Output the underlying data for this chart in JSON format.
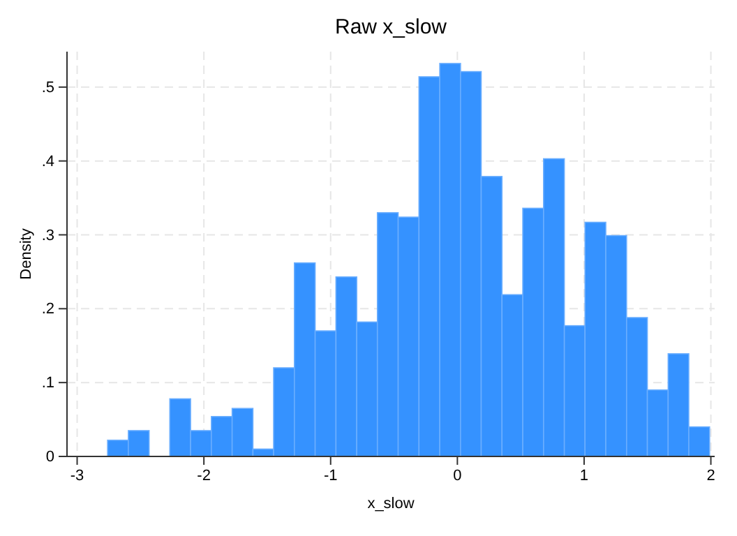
{
  "chart_data": {
    "type": "histogram",
    "title": "Raw x_slow",
    "xlabel": "x_slow",
    "ylabel": "Density",
    "color": "#3592ff",
    "bins": [
      -2.76,
      -2.596,
      -2.432,
      -2.269,
      -2.105,
      -1.941,
      -1.777,
      -1.613,
      -1.45,
      -1.286,
      -1.122,
      -0.958,
      -0.794,
      -0.631,
      -0.467,
      -0.303,
      -0.139,
      0.025,
      0.188,
      0.352,
      0.516,
      0.68,
      0.844,
      1.007,
      1.171,
      1.335,
      1.499,
      1.663,
      1.826,
      1.99
    ],
    "values": [
      0.022,
      0.035,
      0,
      0.078,
      0.035,
      0.054,
      0.065,
      0.01,
      0.12,
      0.262,
      0.17,
      0.243,
      0.182,
      0.33,
      0.324,
      0.514,
      0.532,
      0.521,
      0.379,
      0.219,
      0.336,
      0.403,
      0.177,
      0.317,
      0.299,
      0.188,
      0.09,
      0.139,
      0.04
    ],
    "xlim": [
      -3.08,
      2.03
    ],
    "ylim": [
      0,
      0.548
    ],
    "xticks": [
      -3,
      -2,
      -1,
      0,
      1,
      2
    ],
    "yticks": [
      0,
      {
        "value": 0.1,
        "label": ".1"
      },
      {
        "value": 0.2,
        "label": ".2"
      },
      {
        "value": 0.3,
        "label": ".3"
      },
      {
        "value": 0.4,
        "label": ".4"
      },
      {
        "value": 0.5,
        "label": ".5"
      }
    ],
    "grid": true
  }
}
